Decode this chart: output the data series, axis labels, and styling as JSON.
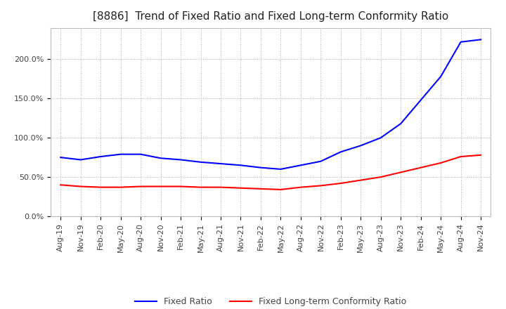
{
  "title": "[8886]  Trend of Fixed Ratio and Fixed Long-term Conformity Ratio",
  "x_labels": [
    "Aug-19",
    "Nov-19",
    "Feb-20",
    "May-20",
    "Aug-20",
    "Nov-20",
    "Feb-21",
    "May-21",
    "Aug-21",
    "Nov-21",
    "Feb-22",
    "May-22",
    "Aug-22",
    "Nov-22",
    "Feb-23",
    "May-23",
    "Aug-23",
    "Nov-23",
    "Feb-24",
    "May-24",
    "Aug-24",
    "Nov-24"
  ],
  "fixed_ratio": [
    75,
    72,
    76,
    79,
    79,
    74,
    72,
    69,
    67,
    65,
    62,
    60,
    65,
    70,
    82,
    90,
    100,
    118,
    148,
    178,
    222,
    225
  ],
  "fixed_lt_ratio": [
    40,
    38,
    37,
    37,
    38,
    38,
    38,
    37,
    37,
    36,
    35,
    34,
    37,
    39,
    42,
    46,
    50,
    56,
    62,
    68,
    76,
    78
  ],
  "fixed_ratio_color": "#0000FF",
  "fixed_lt_ratio_color": "#FF0000",
  "ylim": [
    0,
    240
  ],
  "yticks": [
    0,
    50,
    100,
    150,
    200
  ],
  "ytick_labels": [
    "0.0%",
    "50.0%",
    "100.0%",
    "150.0%",
    "200.0%"
  ],
  "background_color": "#FFFFFF",
  "grid_color": "#AAAAAA",
  "title_fontsize": 11,
  "tick_fontsize": 8,
  "legend_fixed_ratio": "Fixed Ratio",
  "legend_fixed_lt_ratio": "Fixed Long-term Conformity Ratio"
}
